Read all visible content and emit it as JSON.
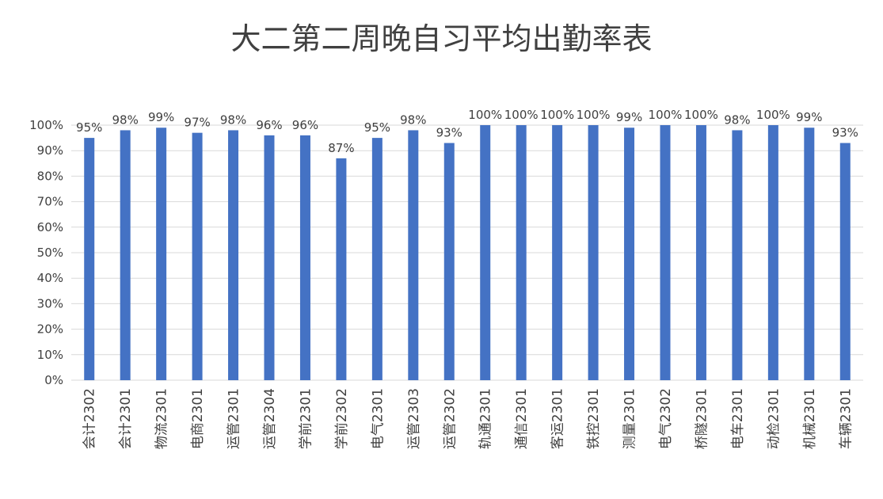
{
  "chart_data": {
    "type": "bar",
    "title": "大二第二周晚自习平均出勤率表",
    "categories": [
      "会计2302",
      "会计2301",
      "物流2301",
      "电商2301",
      "运管2301",
      "运管2304",
      "学前2301",
      "学前2302",
      "电气2301",
      "运管2303",
      "运管2302",
      "轨通2301",
      "通信2301",
      "客运2301",
      "铁控2301",
      "测量2301",
      "电气2302",
      "桥隧2301",
      "电车2301",
      "动检2301",
      "机械2301",
      "车辆2301"
    ],
    "values": [
      95,
      98,
      99,
      97,
      98,
      96,
      96,
      87,
      95,
      98,
      93,
      100,
      100,
      100,
      100,
      99,
      100,
      100,
      98,
      100,
      99,
      93
    ],
    "data_labels": [
      "95%",
      "98%",
      "99%",
      "97%",
      "98%",
      "96%",
      "96%",
      "87%",
      "95%",
      "98%",
      "93%",
      "100%",
      "100%",
      "100%",
      "100%",
      "99%",
      "100%",
      "100%",
      "98%",
      "100%",
      "99%",
      "93%"
    ],
    "ylim": [
      0,
      100
    ],
    "yticks": [
      "0%",
      "10%",
      "20%",
      "30%",
      "40%",
      "50%",
      "60%",
      "70%",
      "80%",
      "90%",
      "100%"
    ],
    "grid": true,
    "bar_color": "#4472C4",
    "grid_color": "#D9D9D9",
    "xlabel": "",
    "ylabel": ""
  }
}
